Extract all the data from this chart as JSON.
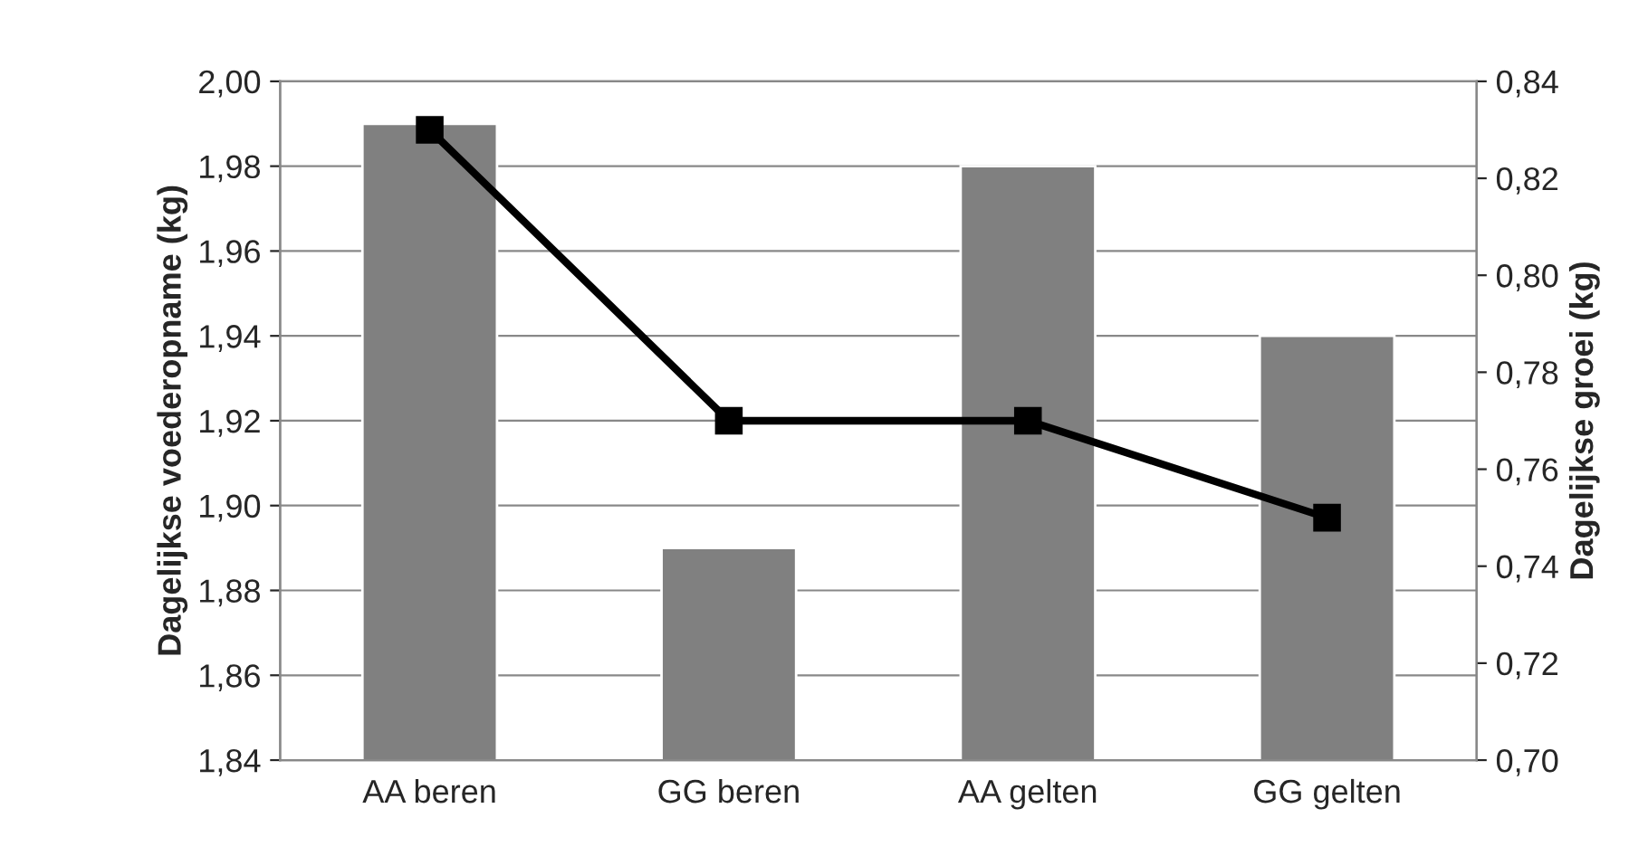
{
  "chart_data": {
    "type": "bar",
    "categories": [
      "AA beren",
      "GG beren",
      "AA gelten",
      "GG gelten"
    ],
    "ylabel": "Dagelijkse voederopname (kg)",
    "y2label": "Dagelijkse groei (kg)",
    "series": [
      {
        "color": "#808080",
        "values": [
          1.99,
          1.89,
          1.98,
          1.94
        ]
      },
      {
        "type": "line",
        "axis": "y2",
        "color": "#000000",
        "marker": "square",
        "line_style": "solid",
        "values": [
          0.83,
          0.77,
          0.77,
          0.75
        ]
      }
    ],
    "ylim": [
      1.84,
      2.0
    ],
    "yticks": [
      {
        "value": 1.84,
        "label": "1,84"
      },
      {
        "value": 1.86,
        "label": "1,86"
      },
      {
        "value": 1.88,
        "label": "1,88"
      },
      {
        "value": 1.9,
        "label": "1,90"
      },
      {
        "value": 1.92,
        "label": "1,92"
      },
      {
        "value": 1.94,
        "label": "1,94"
      },
      {
        "value": 1.96,
        "label": "1,96"
      },
      {
        "value": 1.98,
        "label": "1,98"
      },
      {
        "value": 2.0,
        "label": "2,00"
      }
    ],
    "y2lim": [
      0.7,
      0.84
    ],
    "y2ticks": [
      {
        "value": 0.7,
        "label": "0,70"
      },
      {
        "value": 0.72,
        "label": "0,72"
      },
      {
        "value": 0.74,
        "label": "0,74"
      },
      {
        "value": 0.76,
        "label": "0,76"
      },
      {
        "value": 0.78,
        "label": "0,78"
      },
      {
        "value": 0.8,
        "label": "0,80"
      },
      {
        "value": 0.82,
        "label": "0,82"
      },
      {
        "value": 0.84,
        "label": "0,84"
      }
    ],
    "grid": "y",
    "legend": false
  }
}
